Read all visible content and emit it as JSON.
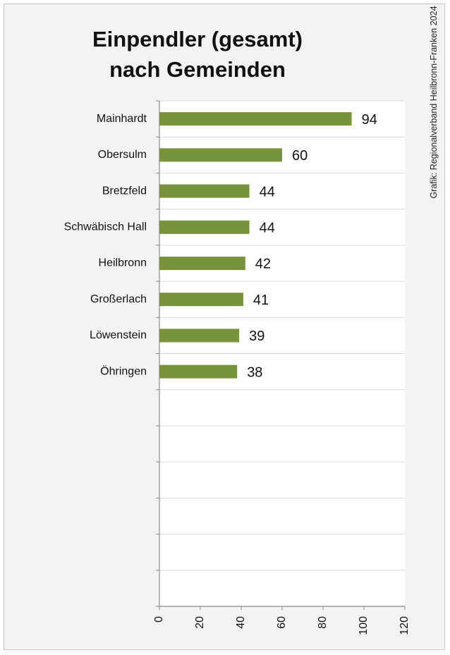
{
  "chart_data": {
    "type": "bar",
    "orientation": "horizontal",
    "title_lines": [
      "Einpendler (gesamt)",
      "nach Gemeinden"
    ],
    "credit": "Grafik: Regionalverband Heilbronn-Franken 2024",
    "categories": [
      "Mainhardt",
      "Obersulm",
      "Bretzfeld",
      "Schwäbisch Hall",
      "Heilbronn",
      "Großerlach",
      "Löwenstein",
      "Öhringen"
    ],
    "values": [
      94,
      60,
      44,
      44,
      42,
      41,
      39,
      38
    ],
    "xlim": [
      0,
      120
    ],
    "xticks": [
      0,
      20,
      40,
      60,
      80,
      100,
      120
    ],
    "xtick_labels": [
      "0",
      "20",
      "40",
      "60",
      "80",
      "100",
      "120"
    ],
    "slots": 14,
    "grid": true,
    "bar_color": "#77933c",
    "grid_color": "#d9d9d9",
    "axis_color": "#8c8c8c"
  }
}
